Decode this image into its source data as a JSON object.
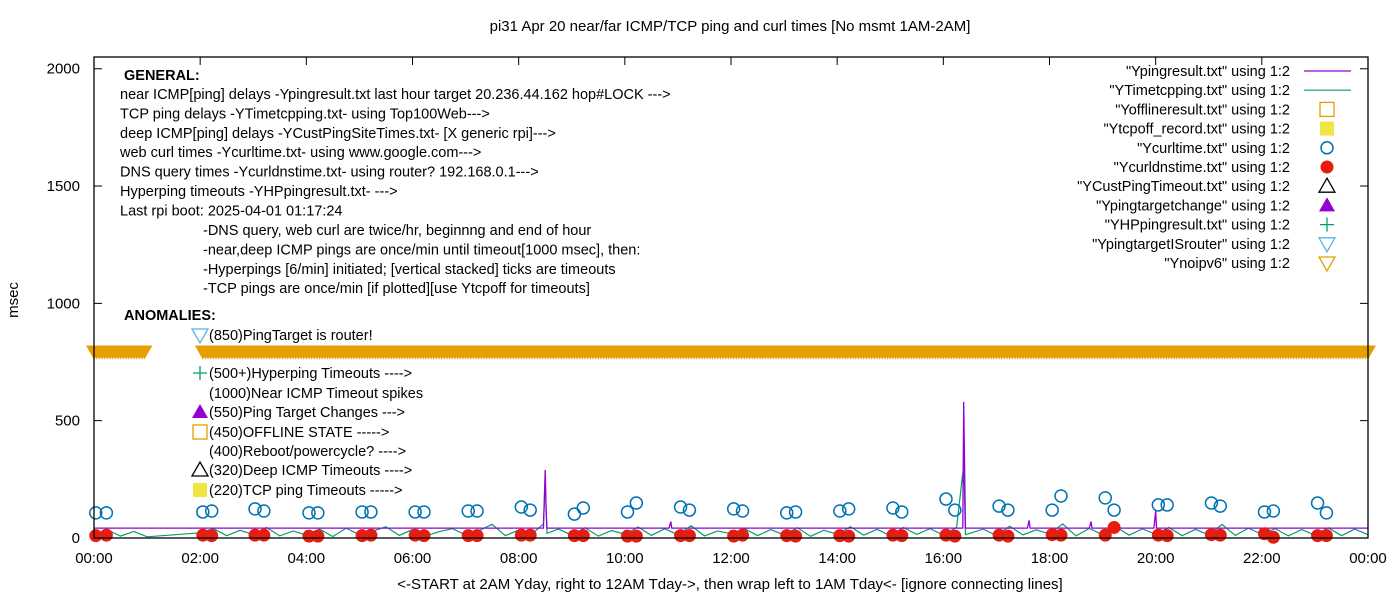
{
  "colors": {
    "ping": "#9400d3",
    "tcp": "#009e73",
    "offline": "#e69f00",
    "tcpoff": "#f0e442",
    "curl": "#0072b2",
    "dns": "#e51e10",
    "custtimeout": "#000000",
    "targetchange": "#9400d3",
    "hpping": "#009e73",
    "isrouter": "#56b4e9",
    "noipv6": "#e69f00"
  },
  "chart_data": {
    "type": "line",
    "title": "pi31 Apr 20  near/far ICMP/TCP ping and curl times [No msmt 1AM-2AM]",
    "xlabel": "<-START at 2AM Yday, right to 12AM Tday->, then wrap left to 1AM Tday<- [ignore connecting lines]",
    "ylabel": "msec",
    "xlim": [
      "00:00",
      "24:00"
    ],
    "ylim": [
      0,
      2050
    ],
    "xticks": [
      "00:00",
      "02:00",
      "04:00",
      "06:00",
      "08:00",
      "10:00",
      "12:00",
      "14:00",
      "16:00",
      "18:00",
      "20:00",
      "22:00",
      "00:00"
    ],
    "yticks": [
      "0",
      "500",
      "1000",
      "1500",
      "2000"
    ],
    "legend_position": "top-right",
    "legend": [
      {
        "label": "\"Ypingresult.txt\" using 1:2",
        "marker": "line",
        "color_key": "ping"
      },
      {
        "label": "\"YTimetcpping.txt\" using 1:2",
        "marker": "line",
        "color_key": "tcp"
      },
      {
        "label": "\"Yofflineresult.txt\" using 1:2",
        "marker": "open-square",
        "color_key": "offline"
      },
      {
        "label": "\"Ytcpoff_record.txt\" using 1:2",
        "marker": "filled-square",
        "color_key": "tcpoff"
      },
      {
        "label": "\"Ycurltime.txt\" using 1:2",
        "marker": "open-circle",
        "color_key": "curl"
      },
      {
        "label": "\"Ycurldnstime.txt\" using 1:2",
        "marker": "filled-circle",
        "color_key": "dns"
      },
      {
        "label": "\"YCustPingTimeout.txt\" using 1:2",
        "marker": "open-triangle-up",
        "color_key": "custtimeout"
      },
      {
        "label": "\"Ypingtargetchange\" using 1:2",
        "marker": "filled-triangle-up",
        "color_key": "targetchange"
      },
      {
        "label": "\"YHPpingresult.txt\" using 1:2",
        "marker": "plus",
        "color_key": "hpping"
      },
      {
        "label": "\"YpingtargetISrouter\" using 1:2",
        "marker": "open-triangle-down",
        "color_key": "isrouter"
      },
      {
        "label": "\"Ynoipv6\" using 1:2",
        "marker": "open-triangle-down",
        "color_key": "noipv6"
      }
    ],
    "series": {
      "ping": [
        [
          "00:00",
          42
        ],
        [
          "08:28",
          42
        ],
        [
          "08:30",
          290
        ],
        [
          "08:31",
          120
        ],
        [
          "08:32",
          42
        ],
        [
          "10:50",
          42
        ],
        [
          "10:52",
          70
        ],
        [
          "10:53",
          42
        ],
        [
          "16:22",
          42
        ],
        [
          "16:23",
          580
        ],
        [
          "16:24",
          310
        ],
        [
          "16:25",
          42
        ],
        [
          "17:35",
          42
        ],
        [
          "17:37",
          75
        ],
        [
          "17:38",
          42
        ],
        [
          "18:45",
          42
        ],
        [
          "18:47",
          70
        ],
        [
          "18:48",
          42
        ],
        [
          "19:58",
          42
        ],
        [
          "20:00",
          115
        ],
        [
          "20:01",
          42
        ],
        [
          "24:00",
          42
        ]
      ],
      "tcp": [
        [
          "00:00",
          12
        ],
        [
          "00:15",
          35
        ],
        [
          "00:30",
          8
        ],
        [
          "00:45",
          28
        ],
        [
          "01:00",
          5
        ],
        [
          "02:00",
          22
        ],
        [
          "02:15",
          40
        ],
        [
          "02:30",
          10
        ],
        [
          "02:45",
          33
        ],
        [
          "03:00",
          15
        ],
        [
          "03:15",
          45
        ],
        [
          "03:30",
          9
        ],
        [
          "03:45",
          30
        ],
        [
          "04:00",
          12
        ],
        [
          "04:15",
          38
        ],
        [
          "04:30",
          6
        ],
        [
          "04:45",
          42
        ],
        [
          "05:00",
          14
        ],
        [
          "05:15",
          29
        ],
        [
          "05:30",
          48
        ],
        [
          "05:45",
          11
        ],
        [
          "06:00",
          36
        ],
        [
          "06:15",
          9
        ],
        [
          "06:30",
          27
        ],
        [
          "06:45",
          40
        ],
        [
          "07:00",
          13
        ],
        [
          "07:15",
          31
        ],
        [
          "07:30",
          58
        ],
        [
          "07:45",
          10
        ],
        [
          "08:00",
          34
        ],
        [
          "08:15",
          18
        ],
        [
          "08:28",
          60
        ],
        [
          "08:30",
          250
        ],
        [
          "08:32",
          20
        ],
        [
          "08:45",
          38
        ],
        [
          "09:00",
          12
        ],
        [
          "09:15",
          44
        ],
        [
          "09:30",
          8
        ],
        [
          "09:45",
          32
        ],
        [
          "10:00",
          16
        ],
        [
          "10:15",
          47
        ],
        [
          "10:30",
          11
        ],
        [
          "10:45",
          39
        ],
        [
          "11:00",
          14
        ],
        [
          "11:15",
          52
        ],
        [
          "11:30",
          9
        ],
        [
          "11:45",
          30
        ],
        [
          "12:00",
          18
        ],
        [
          "12:15",
          41
        ],
        [
          "12:30",
          10
        ],
        [
          "12:45",
          36
        ],
        [
          "13:00",
          13
        ],
        [
          "13:15",
          44
        ],
        [
          "13:30",
          7
        ],
        [
          "13:45",
          33
        ],
        [
          "14:00",
          16
        ],
        [
          "14:15",
          48
        ],
        [
          "14:30",
          12
        ],
        [
          "14:45",
          37
        ],
        [
          "15:00",
          10
        ],
        [
          "15:15",
          45
        ],
        [
          "15:30",
          15
        ],
        [
          "15:45",
          40
        ],
        [
          "16:00",
          12
        ],
        [
          "16:15",
          46
        ],
        [
          "16:23",
          310
        ],
        [
          "16:25",
          14
        ],
        [
          "16:45",
          38
        ],
        [
          "17:00",
          11
        ],
        [
          "17:15",
          50
        ],
        [
          "17:30",
          13
        ],
        [
          "17:45",
          35
        ],
        [
          "18:00",
          17
        ],
        [
          "18:15",
          60
        ],
        [
          "18:30",
          9
        ],
        [
          "18:45",
          41
        ],
        [
          "19:00",
          14
        ],
        [
          "19:15",
          48
        ],
        [
          "19:30",
          12
        ],
        [
          "19:45",
          39
        ],
        [
          "20:00",
          16
        ],
        [
          "20:15",
          45
        ],
        [
          "20:30",
          10
        ],
        [
          "20:45",
          37
        ],
        [
          "21:00",
          13
        ],
        [
          "21:15",
          58
        ],
        [
          "21:30",
          11
        ],
        [
          "21:45",
          42
        ],
        [
          "22:00",
          15
        ],
        [
          "22:15",
          40
        ],
        [
          "22:30",
          9
        ],
        [
          "22:45",
          36
        ],
        [
          "23:00",
          12
        ],
        [
          "23:15",
          44
        ],
        [
          "23:30",
          10
        ],
        [
          "23:45",
          38
        ],
        [
          "24:00",
          14
        ]
      ],
      "curl": [
        [
          "00:02",
          107
        ],
        [
          "00:14",
          107
        ],
        [
          "02:03",
          111
        ],
        [
          "02:13",
          115
        ],
        [
          "03:02",
          124
        ],
        [
          "03:12",
          115
        ],
        [
          "04:03",
          107
        ],
        [
          "04:13",
          107
        ],
        [
          "05:03",
          111
        ],
        [
          "05:13",
          111
        ],
        [
          "06:03",
          111
        ],
        [
          "06:13",
          111
        ],
        [
          "07:03",
          115
        ],
        [
          "07:13",
          115
        ],
        [
          "08:03",
          132
        ],
        [
          "08:13",
          119
        ],
        [
          "09:03",
          102
        ],
        [
          "09:13",
          128
        ],
        [
          "10:03",
          111
        ],
        [
          "10:13",
          149
        ],
        [
          "11:03",
          132
        ],
        [
          "11:13",
          119
        ],
        [
          "12:03",
          124
        ],
        [
          "12:13",
          115
        ],
        [
          "13:03",
          107
        ],
        [
          "13:13",
          111
        ],
        [
          "14:03",
          115
        ],
        [
          "14:13",
          124
        ],
        [
          "15:03",
          128
        ],
        [
          "15:13",
          111
        ],
        [
          "16:03",
          166
        ],
        [
          "16:13",
          119
        ],
        [
          "17:03",
          136
        ],
        [
          "17:13",
          119
        ],
        [
          "18:03",
          119
        ],
        [
          "18:13",
          179
        ],
        [
          "19:03",
          171
        ],
        [
          "19:13",
          119
        ],
        [
          "20:03",
          141
        ],
        [
          "20:13",
          141
        ],
        [
          "21:03",
          149
        ],
        [
          "21:13",
          136
        ],
        [
          "22:03",
          111
        ],
        [
          "22:13",
          115
        ],
        [
          "23:03",
          149
        ],
        [
          "23:13",
          107
        ]
      ],
      "dns": [
        [
          "00:02",
          10
        ],
        [
          "00:14",
          12
        ],
        [
          "02:03",
          12
        ],
        [
          "02:13",
          10
        ],
        [
          "03:02",
          12
        ],
        [
          "03:12",
          12
        ],
        [
          "04:03",
          8
        ],
        [
          "04:13",
          8
        ],
        [
          "05:03",
          10
        ],
        [
          "05:13",
          12
        ],
        [
          "06:03",
          12
        ],
        [
          "06:13",
          10
        ],
        [
          "07:03",
          10
        ],
        [
          "07:13",
          10
        ],
        [
          "08:03",
          12
        ],
        [
          "08:13",
          12
        ],
        [
          "09:03",
          10
        ],
        [
          "09:13",
          10
        ],
        [
          "10:03",
          8
        ],
        [
          "10:13",
          8
        ],
        [
          "11:03",
          10
        ],
        [
          "11:13",
          10
        ],
        [
          "12:03",
          8
        ],
        [
          "12:13",
          12
        ],
        [
          "13:03",
          10
        ],
        [
          "13:13",
          8
        ],
        [
          "14:03",
          10
        ],
        [
          "14:13",
          8
        ],
        [
          "15:03",
          12
        ],
        [
          "15:13",
          10
        ],
        [
          "16:03",
          12
        ],
        [
          "16:13",
          8
        ],
        [
          "17:03",
          12
        ],
        [
          "17:13",
          8
        ],
        [
          "18:03",
          14
        ],
        [
          "18:13",
          12
        ],
        [
          "19:03",
          12
        ],
        [
          "19:13",
          45
        ],
        [
          "20:03",
          12
        ],
        [
          "20:13",
          10
        ],
        [
          "21:03",
          14
        ],
        [
          "21:13",
          12
        ],
        [
          "22:03",
          18
        ],
        [
          "22:13",
          3
        ],
        [
          "23:03",
          10
        ],
        [
          "23:13",
          10
        ]
      ],
      "noipv6": {
        "value": 795,
        "ranges": [
          [
            "00:00",
            "00:58"
          ],
          [
            "02:03",
            "24:00"
          ]
        ]
      }
    }
  },
  "notes": {
    "general_header": "GENERAL:",
    "general_lines": [
      "near ICMP[ping] delays -Ypingresult.txt last hour target 20.236.44.162 hop#LOCK --->",
      "TCP ping delays -YTimetcpping.txt- using Top100Web--->",
      "deep ICMP[ping] delays -YCustPingSiteTimes.txt- [X generic rpi]--->",
      "web curl times -Ycurltime.txt- using www.google.com--->",
      "DNS query times -Ycurldnstime.txt- using router? 192.168.0.1--->",
      "Hyperping timeouts -YHPpingresult.txt- --->",
      "Last rpi boot: 2025-04-01 01:17:24"
    ],
    "general_sub": [
      "-DNS query, web curl are twice/hr, beginnng and end of hour",
      "-near,deep ICMP pings are once/min until timeout[1000 msec], then:",
      "  -Hyperpings [6/min] initiated; [vertical stacked] ticks are timeouts",
      "-TCP pings are once/min [if plotted][use Ytcpoff for timeouts]"
    ],
    "anomalies_header": "ANOMALIES:",
    "anomalies": [
      {
        "text": "(850)PingTarget is router!",
        "marker": "open-triangle-down",
        "color_key": "isrouter"
      },
      {
        "text": "(500+)Hyperping Timeouts ---->",
        "marker": "plus",
        "color_key": "hpping"
      },
      {
        "text": "(1000)Near ICMP Timeout spikes",
        "marker": "none",
        "color_key": "ping"
      },
      {
        "text": "(550)Ping Target Changes --->",
        "marker": "filled-triangle-up",
        "color_key": "targetchange"
      },
      {
        "text": "(450)OFFLINE STATE ----->",
        "marker": "open-square",
        "color_key": "offline"
      },
      {
        "text": "(400)Reboot/powercycle? ---->",
        "marker": "none",
        "color_key": "ping"
      },
      {
        "text": "(320)Deep ICMP Timeouts ---->",
        "marker": "open-triangle-up",
        "color_key": "custtimeout"
      },
      {
        "text": "(220)TCP ping Timeouts ----->",
        "marker": "filled-square",
        "color_key": "tcpoff"
      }
    ]
  }
}
